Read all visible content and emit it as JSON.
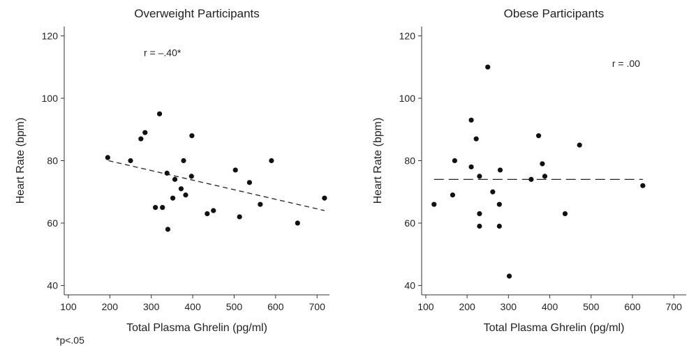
{
  "footnote": "*p<.05",
  "chart_data": [
    {
      "type": "scatter",
      "title": "Overweight Participants",
      "xlabel": "Total Plasma Ghrelin (pg/ml)",
      "ylabel": "Heart Rate (bpm)",
      "xlim": [
        90,
        730
      ],
      "ylim": [
        37,
        123
      ],
      "xticks": [
        100,
        200,
        300,
        400,
        500,
        600,
        700
      ],
      "yticks": [
        40,
        60,
        80,
        100,
        120
      ],
      "annotation": "r = –.40*",
      "points": [
        {
          "x": 195,
          "y": 81
        },
        {
          "x": 250,
          "y": 80
        },
        {
          "x": 275,
          "y": 87
        },
        {
          "x": 285,
          "y": 89
        },
        {
          "x": 320,
          "y": 95
        },
        {
          "x": 310,
          "y": 65
        },
        {
          "x": 327,
          "y": 65
        },
        {
          "x": 338,
          "y": 76
        },
        {
          "x": 340,
          "y": 58
        },
        {
          "x": 352,
          "y": 68
        },
        {
          "x": 357,
          "y": 74
        },
        {
          "x": 372,
          "y": 71
        },
        {
          "x": 378,
          "y": 80
        },
        {
          "x": 383,
          "y": 69
        },
        {
          "x": 397,
          "y": 75
        },
        {
          "x": 398,
          "y": 88
        },
        {
          "x": 435,
          "y": 63
        },
        {
          "x": 450,
          "y": 64
        },
        {
          "x": 503,
          "y": 77
        },
        {
          "x": 513,
          "y": 62
        },
        {
          "x": 537,
          "y": 73
        },
        {
          "x": 563,
          "y": 66
        },
        {
          "x": 590,
          "y": 80
        },
        {
          "x": 653,
          "y": 60
        },
        {
          "x": 718,
          "y": 68
        }
      ],
      "fit_line": {
        "x": [
          197,
          718
        ],
        "y": [
          80,
          64
        ],
        "style": "dashed"
      }
    },
    {
      "type": "scatter",
      "title": "Obese Participants",
      "xlabel": "Total Plasma Ghrelin (pg/ml)",
      "ylabel": "Heart Rate (bpm)",
      "xlim": [
        90,
        730
      ],
      "ylim": [
        37,
        123
      ],
      "xticks": [
        100,
        200,
        300,
        400,
        500,
        600,
        700
      ],
      "yticks": [
        40,
        60,
        80,
        100,
        120
      ],
      "annotation": "r = .00",
      "points": [
        {
          "x": 120,
          "y": 66
        },
        {
          "x": 165,
          "y": 69
        },
        {
          "x": 170,
          "y": 80
        },
        {
          "x": 210,
          "y": 93
        },
        {
          "x": 210,
          "y": 78
        },
        {
          "x": 222,
          "y": 87
        },
        {
          "x": 230,
          "y": 75
        },
        {
          "x": 230,
          "y": 63
        },
        {
          "x": 230,
          "y": 59
        },
        {
          "x": 250,
          "y": 110
        },
        {
          "x": 262,
          "y": 70
        },
        {
          "x": 278,
          "y": 66
        },
        {
          "x": 280,
          "y": 77
        },
        {
          "x": 278,
          "y": 59
        },
        {
          "x": 302,
          "y": 43
        },
        {
          "x": 355,
          "y": 74
        },
        {
          "x": 373,
          "y": 88
        },
        {
          "x": 382,
          "y": 79
        },
        {
          "x": 388,
          "y": 75
        },
        {
          "x": 437,
          "y": 63
        },
        {
          "x": 472,
          "y": 85
        },
        {
          "x": 625,
          "y": 72
        }
      ],
      "fit_line": {
        "x": [
          120,
          625
        ],
        "y": [
          74,
          74
        ],
        "style": "dashed"
      }
    }
  ]
}
